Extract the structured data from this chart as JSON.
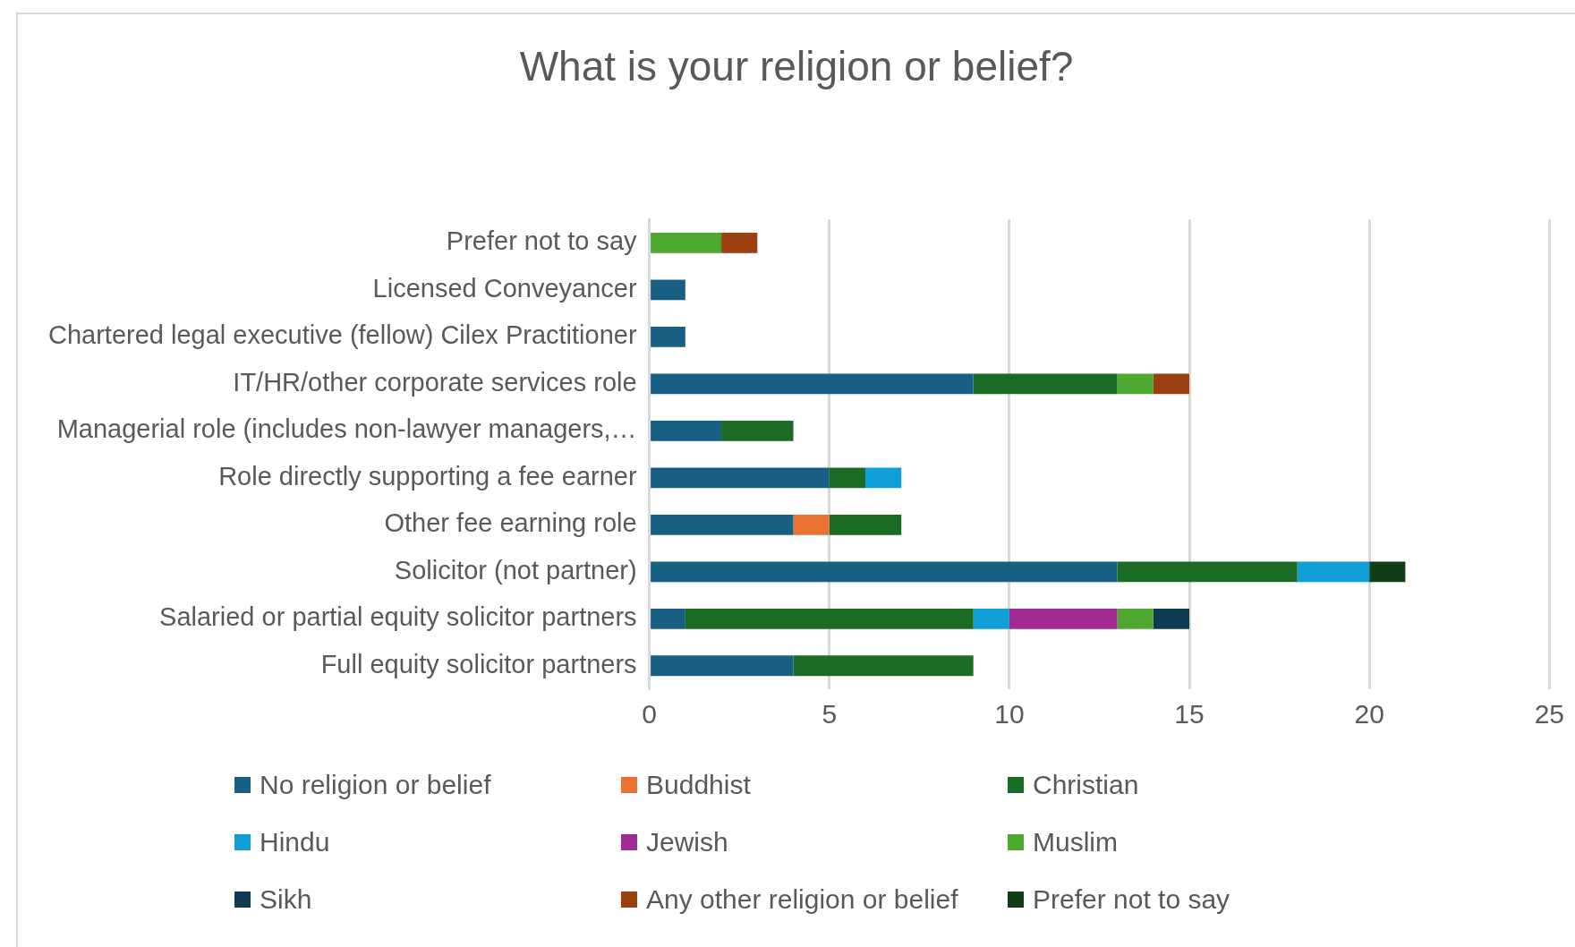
{
  "chart_data": {
    "type": "bar",
    "orientation": "horizontal",
    "stacked": true,
    "title": "What is your religion or belief?",
    "categories": [
      "Prefer not to say",
      "Licensed Conveyancer",
      "Chartered legal executive (fellow) Cilex Practitioner",
      "IT/HR/other corporate services role",
      "Managerial role (includes non-lawyer managers,…",
      "Role directly supporting a fee earner",
      "Other fee earning role",
      "Solicitor (not partner)",
      "Salaried or partial equity solicitor partners",
      "Full equity solicitor partners"
    ],
    "series": [
      {
        "name": "No religion or belief",
        "color": "#176083",
        "values": [
          null,
          1,
          1,
          9,
          2,
          5,
          4,
          13,
          1,
          4
        ]
      },
      {
        "name": "Buddhist",
        "color": "#e97132",
        "values": [
          null,
          null,
          null,
          null,
          null,
          null,
          1,
          null,
          null,
          null
        ]
      },
      {
        "name": "Christian",
        "color": "#1b6b25",
        "values": [
          null,
          null,
          null,
          4,
          2,
          1,
          2,
          5,
          8,
          5
        ]
      },
      {
        "name": "Hindu",
        "color": "#0f9ed5",
        "values": [
          null,
          null,
          null,
          null,
          null,
          1,
          null,
          2,
          1,
          null
        ]
      },
      {
        "name": "Jewish",
        "color": "#a02b93",
        "values": [
          null,
          null,
          null,
          null,
          null,
          null,
          null,
          null,
          3,
          null
        ]
      },
      {
        "name": "Muslim",
        "color": "#4ea72e",
        "values": [
          2,
          null,
          null,
          1,
          null,
          null,
          null,
          null,
          1,
          null
        ]
      },
      {
        "name": "Sikh",
        "color": "#0e3a52",
        "values": [
          null,
          null,
          null,
          null,
          null,
          null,
          null,
          null,
          1,
          null
        ]
      },
      {
        "name": "Any other religion or belief",
        "color": "#9a3f10",
        "values": [
          1,
          null,
          null,
          1,
          null,
          null,
          null,
          null,
          null,
          null
        ]
      },
      {
        "name": "Prefer not to say",
        "color": "#0f3e16",
        "values": [
          null,
          null,
          null,
          null,
          null,
          null,
          null,
          1,
          null,
          null
        ]
      }
    ],
    "xlim": [
      0,
      25
    ],
    "xticks": [
      0,
      5,
      10,
      15,
      20,
      25
    ],
    "grid": "x",
    "legend": "bottom"
  }
}
